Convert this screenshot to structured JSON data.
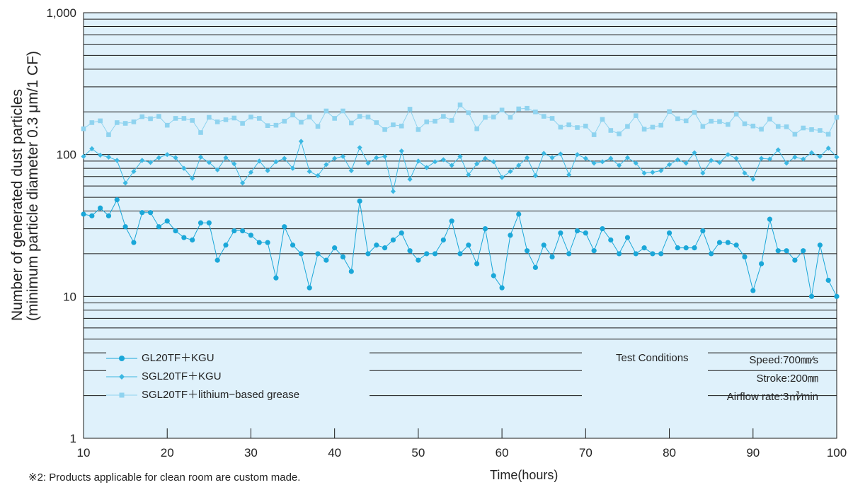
{
  "chart_data": {
    "type": "line",
    "x": [
      10,
      11,
      12,
      13,
      14,
      15,
      16,
      17,
      18,
      19,
      20,
      21,
      22,
      23,
      24,
      25,
      26,
      27,
      28,
      29,
      30,
      31,
      32,
      33,
      34,
      35,
      36,
      37,
      38,
      39,
      40,
      41,
      42,
      43,
      44,
      45,
      46,
      47,
      48,
      49,
      50,
      51,
      52,
      53,
      54,
      55,
      56,
      57,
      58,
      59,
      60,
      61,
      62,
      63,
      64,
      65,
      66,
      67,
      68,
      69,
      70,
      71,
      72,
      73,
      74,
      75,
      76,
      77,
      78,
      79,
      80,
      81,
      82,
      83,
      84,
      85,
      86,
      87,
      88,
      89,
      90,
      91,
      92,
      93,
      94,
      95,
      96,
      97,
      98,
      99,
      100
    ],
    "series": [
      {
        "name": "GL20TF＋KGU",
        "color": "#1aa7d8",
        "marker": "circle",
        "values": [
          38,
          37,
          42,
          37,
          48,
          31,
          24,
          39,
          39,
          31,
          34,
          29,
          26,
          25,
          33,
          33,
          18,
          23,
          29,
          29,
          27,
          24,
          24,
          13.5,
          31,
          23,
          20,
          11.5,
          20,
          18,
          22,
          19,
          15,
          47,
          20,
          23,
          22,
          25,
          28,
          21,
          18,
          20,
          20,
          25,
          34,
          20,
          23,
          17,
          30,
          14,
          11.5,
          27,
          38,
          21,
          16,
          23,
          19,
          28,
          20,
          29,
          28,
          21,
          30,
          25,
          20,
          26,
          20,
          22,
          20,
          20,
          28,
          22,
          22,
          22,
          29,
          20,
          24,
          24,
          23,
          19,
          11,
          17,
          35,
          21,
          21,
          18,
          21,
          10,
          23,
          13,
          10
        ]
      },
      {
        "name": "SGL20TF＋KGU",
        "color": "#3cb8e2",
        "marker": "diamond",
        "values": [
          97,
          110,
          99,
          96,
          91,
          63,
          76,
          91,
          88,
          95,
          100,
          95,
          80,
          68,
          96,
          88,
          78,
          95,
          86,
          63,
          75,
          90,
          77,
          89,
          94,
          80,
          124,
          76,
          71,
          85,
          94,
          97,
          77,
          112,
          87,
          95,
          97,
          55,
          106,
          67,
          90,
          81,
          89,
          92,
          84,
          97,
          72,
          86,
          94,
          89,
          69,
          76,
          84,
          95,
          71,
          102,
          95,
          101,
          72,
          100,
          94,
          87,
          89,
          94,
          84,
          95,
          87,
          74,
          75,
          77,
          85,
          92,
          87,
          103,
          74,
          91,
          88,
          100,
          94,
          74,
          67,
          94,
          93,
          108,
          87,
          96,
          93,
          103,
          97,
          111,
          96
        ]
      },
      {
        "name": "SGL20TF＋lithium−based grease",
        "color": "#8fd3ef",
        "marker": "square",
        "values": [
          152,
          168,
          173,
          138,
          168,
          166,
          170,
          185,
          179,
          186,
          161,
          180,
          180,
          174,
          143,
          183,
          170,
          176,
          181,
          166,
          184,
          180,
          160,
          161,
          172,
          190,
          169,
          184,
          158,
          203,
          180,
          203,
          167,
          186,
          184,
          168,
          150,
          162,
          159,
          209,
          150,
          170,
          172,
          186,
          174,
          224,
          197,
          152,
          183,
          184,
          206,
          183,
          210,
          212,
          200,
          186,
          180,
          156,
          162,
          155,
          159,
          138,
          177,
          148,
          140,
          158,
          188,
          151,
          156,
          161,
          201,
          179,
          173,
          198,
          158,
          172,
          171,
          163,
          193,
          165,
          159,
          151,
          178,
          158,
          157,
          139,
          154,
          150,
          148,
          139,
          183
        ]
      }
    ],
    "xlabel": "Time(hours)",
    "ylabel_line1": "Number of generated dust particles",
    "ylabel_line2": "(minimum particle diameter 0.3 μm/1 CF)",
    "xlim": [
      10,
      100
    ],
    "ylim": [
      1,
      1000
    ],
    "yscale": "log",
    "xticks": [
      10,
      20,
      30,
      40,
      50,
      60,
      70,
      80,
      90,
      100
    ],
    "yticks": [
      1,
      10,
      100,
      1000
    ],
    "ytick_labels": [
      "1",
      "10",
      "100",
      "1,000"
    ],
    "grid": true,
    "background_color": "#dff1fb",
    "legend_position": "bottom-left"
  },
  "test_conditions": {
    "title": "Test Conditions",
    "speed": "Speed:700㎜⁄s",
    "stroke": "Stroke:200㎜",
    "airflow": "Airflow rate:3㎥⁄min"
  },
  "footnote": "※2:  Products applicable for clean room are custom made."
}
